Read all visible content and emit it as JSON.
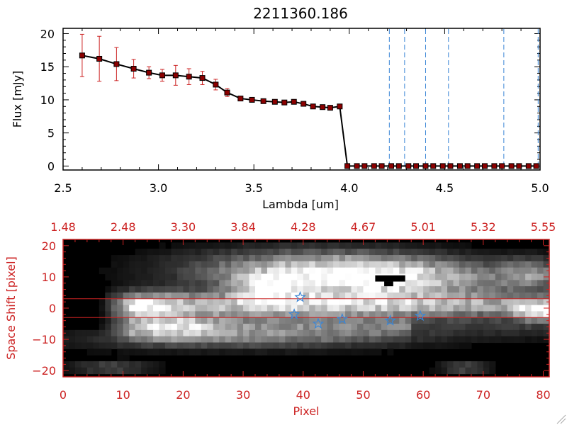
{
  "chart_data": [
    {
      "type": "line",
      "title": "2211360.186",
      "xlabel": "Lambda [um]",
      "ylabel": "Flux [mJy]",
      "xlim": [
        2.5,
        5.0
      ],
      "ylim": [
        -0.6,
        20.8
      ],
      "xticks": [
        2.5,
        3.0,
        3.5,
        4.0,
        4.5,
        5.0
      ],
      "xtick_labels": [
        "2.5",
        "3.0",
        "3.5",
        "4.0",
        "4.5",
        "5.0"
      ],
      "yticks": [
        0,
        5,
        10,
        15,
        20
      ],
      "ytick_labels": [
        "0",
        "5",
        "10",
        "15",
        "20"
      ],
      "series": [
        {
          "name": "flux",
          "x": [
            2.6,
            2.69,
            2.78,
            2.87,
            2.95,
            3.02,
            3.09,
            3.16,
            3.23,
            3.3,
            3.36,
            3.43,
            3.49,
            3.55,
            3.61,
            3.66,
            3.71,
            3.76,
            3.81,
            3.86,
            3.9,
            3.95,
            3.99,
            4.04,
            4.08,
            4.13,
            4.17,
            4.22,
            4.26,
            4.31,
            4.35,
            4.4,
            4.44,
            4.49,
            4.53,
            4.58,
            4.62,
            4.67,
            4.71,
            4.76,
            4.8,
            4.85,
            4.89,
            4.94,
            4.98
          ],
          "y": [
            16.7,
            16.2,
            15.4,
            14.7,
            14.1,
            13.7,
            13.7,
            13.5,
            13.3,
            12.3,
            11.1,
            10.2,
            10.0,
            9.8,
            9.7,
            9.6,
            9.7,
            9.4,
            9.0,
            8.9,
            8.8,
            9.0,
            0,
            0,
            0,
            0,
            0,
            0,
            0,
            0,
            0,
            0,
            0,
            0,
            0,
            0,
            0,
            0,
            0,
            0,
            0,
            0,
            0,
            0,
            0
          ],
          "yerr": [
            3.2,
            3.4,
            2.5,
            1.4,
            0.9,
            0.9,
            1.5,
            1.2,
            1.0,
            0.8,
            0.6,
            0.3,
            0.3,
            0.3,
            0.2,
            0.3,
            0.2,
            0.3,
            0.3,
            0.3,
            0.3,
            0.3,
            0,
            0,
            0,
            0,
            0,
            0,
            0,
            0,
            0,
            0,
            0,
            0,
            0,
            0,
            0,
            0,
            0,
            0,
            0,
            0,
            0,
            0,
            0
          ]
        }
      ],
      "vlines": [
        4.21,
        4.29,
        4.4,
        4.52,
        4.81,
        4.99
      ],
      "hline": 0
    },
    {
      "type": "heatmap",
      "xlabel": "Pixel",
      "ylabel": "Space Shift [pixel]",
      "xlim": [
        0,
        81
      ],
      "ylim": [
        -22,
        22
      ],
      "xticks": [
        0,
        10,
        20,
        30,
        40,
        50,
        60,
        70,
        80
      ],
      "xtick_labels": [
        "0",
        "10",
        "20",
        "30",
        "40",
        "50",
        "60",
        "70",
        "80"
      ],
      "yticks": [
        -20,
        -10,
        0,
        10,
        20
      ],
      "ytick_labels": [
        "−20",
        "−10",
        "0",
        "10",
        "20"
      ],
      "top_axis_labels": [
        "1.48",
        "2.48",
        "3.30",
        "3.84",
        "4.28",
        "4.67",
        "5.01",
        "5.32",
        "5.55"
      ],
      "aperture_lines": [
        3,
        -3
      ],
      "stars": [
        {
          "x": 39.5,
          "y": 3.5
        },
        {
          "x": 38.5,
          "y": -2.0
        },
        {
          "x": 42.5,
          "y": -5.0
        },
        {
          "x": 46.5,
          "y": -3.5
        },
        {
          "x": 54.5,
          "y": -4.0
        },
        {
          "x": 59.5,
          "y": -2.5
        }
      ]
    }
  ],
  "colors": {
    "axis": "#000000",
    "line": "#000000",
    "marker": "#8b0000",
    "errorbar": "#cc2222",
    "vline": "#3a86d6",
    "hline": "#cc2222",
    "bottom_axis": "#cc2222",
    "star": "#3a86d6",
    "aperture": "#cc2222"
  }
}
